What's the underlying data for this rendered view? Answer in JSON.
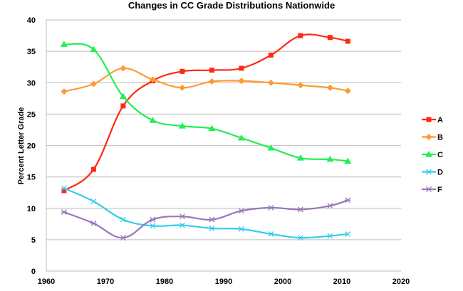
{
  "chart_data": {
    "type": "line",
    "title": "Changes in CC Grade Distributions Nationwide",
    "xlabel": "",
    "ylabel": "Percent Letter Grade",
    "xlim": [
      1960,
      2020
    ],
    "ylim": [
      0,
      40
    ],
    "x_ticks": [
      1960,
      1970,
      1980,
      1990,
      2000,
      2010,
      2020
    ],
    "y_ticks": [
      0,
      5,
      10,
      15,
      20,
      25,
      30,
      35,
      40
    ],
    "grid": "horizontal",
    "legend_position": "right",
    "smooth": true,
    "x": [
      1963,
      1968,
      1973,
      1978,
      1983,
      1988,
      1993,
      1998,
      2003,
      2008,
      2011
    ],
    "series": [
      {
        "name": "A",
        "color": "#ff2a12",
        "marker": "square",
        "values": [
          12.8,
          16.2,
          26.3,
          30.3,
          31.8,
          32.0,
          32.3,
          34.4,
          37.5,
          37.2,
          36.6
        ]
      },
      {
        "name": "B",
        "color": "#ff9933",
        "marker": "diamond",
        "values": [
          28.6,
          29.8,
          32.3,
          30.5,
          29.2,
          30.2,
          30.3,
          30.0,
          29.6,
          29.2,
          28.7
        ]
      },
      {
        "name": "C",
        "color": "#22ee55",
        "marker": "triangle",
        "values": [
          36.1,
          35.3,
          27.8,
          24.0,
          23.1,
          22.7,
          21.2,
          19.6,
          18.0,
          17.8,
          17.5
        ]
      },
      {
        "name": "D",
        "color": "#33ccee",
        "marker": "x",
        "values": [
          13.2,
          11.1,
          8.2,
          7.2,
          7.3,
          6.8,
          6.7,
          5.9,
          5.3,
          5.6,
          5.9
        ]
      },
      {
        "name": "F",
        "color": "#9977bb",
        "marker": "star",
        "values": [
          9.4,
          7.6,
          5.3,
          8.2,
          8.7,
          8.2,
          9.6,
          10.1,
          9.8,
          10.4,
          11.3
        ]
      }
    ]
  }
}
